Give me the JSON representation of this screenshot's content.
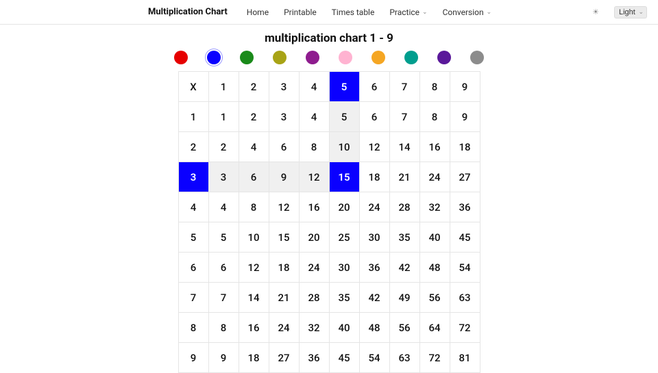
{
  "nav": {
    "brand": "Multiplication Chart",
    "items": [
      {
        "label": "Home",
        "has_submenu": false
      },
      {
        "label": "Printable",
        "has_submenu": false
      },
      {
        "label": "Times table",
        "has_submenu": false
      },
      {
        "label": "Practice",
        "has_submenu": true
      },
      {
        "label": "Conversion",
        "has_submenu": true
      }
    ],
    "theme_selected": "Light"
  },
  "page_title": "multiplication chart 1 - 9",
  "color_swatches": {
    "colors": [
      "#e60000",
      "#0a00ff",
      "#1a8a1a",
      "#a8a316",
      "#8e1c8e",
      "#ffb3d1",
      "#f5a623",
      "#009e8e",
      "#5a189a",
      "#8c8c8c"
    ],
    "selected_index": 1
  },
  "chart": {
    "size": 9,
    "corner_label": "X",
    "highlight": {
      "row": 3,
      "col": 5,
      "color": "#0a00ff",
      "path_color": "#f0f0f0"
    },
    "header_row": [
      "1",
      "2",
      "3",
      "4",
      "5",
      "6",
      "7",
      "8",
      "9"
    ],
    "header_col": [
      "1",
      "2",
      "3",
      "4",
      "5",
      "6",
      "7",
      "8",
      "9"
    ],
    "rows": [
      [
        "1",
        "2",
        "3",
        "4",
        "5",
        "6",
        "7",
        "8",
        "9"
      ],
      [
        "2",
        "4",
        "6",
        "8",
        "10",
        "12",
        "14",
        "16",
        "18"
      ],
      [
        "3",
        "6",
        "9",
        "12",
        "15",
        "18",
        "21",
        "24",
        "27"
      ],
      [
        "4",
        "8",
        "12",
        "16",
        "20",
        "24",
        "28",
        "32",
        "36"
      ],
      [
        "5",
        "10",
        "15",
        "20",
        "25",
        "30",
        "35",
        "40",
        "45"
      ],
      [
        "6",
        "12",
        "18",
        "24",
        "30",
        "36",
        "42",
        "48",
        "54"
      ],
      [
        "7",
        "14",
        "21",
        "28",
        "35",
        "42",
        "49",
        "56",
        "63"
      ],
      [
        "8",
        "16",
        "24",
        "32",
        "40",
        "48",
        "56",
        "64",
        "72"
      ],
      [
        "9",
        "18",
        "27",
        "36",
        "45",
        "54",
        "63",
        "72",
        "81"
      ]
    ]
  }
}
